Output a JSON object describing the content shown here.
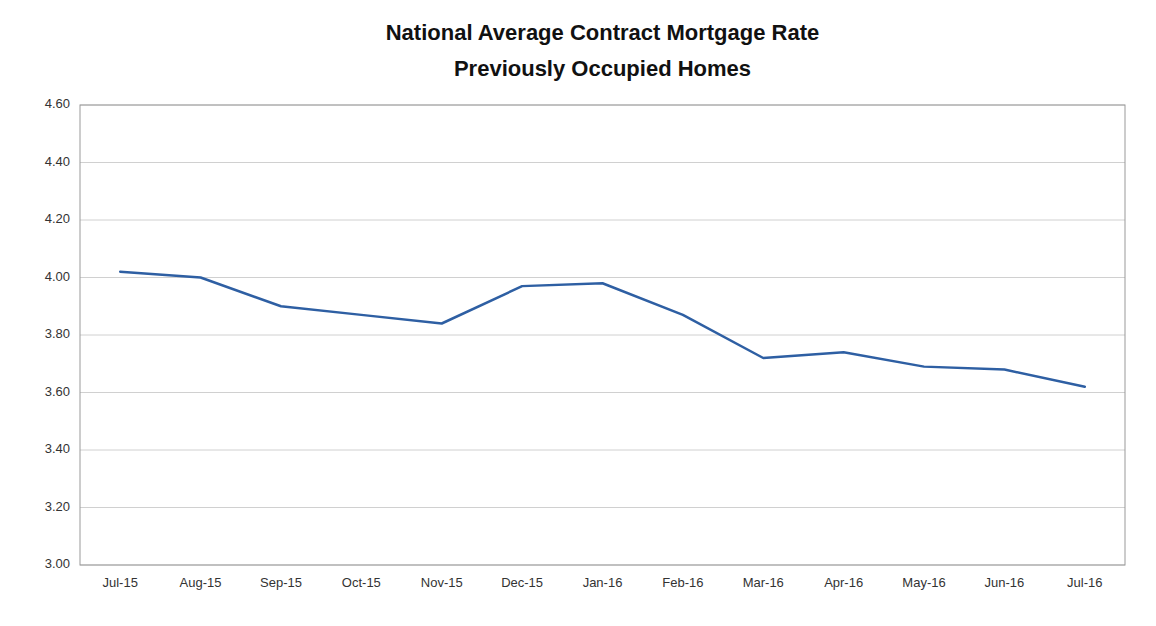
{
  "chart_data": {
    "type": "line",
    "title": "National Average Contract Mortgage Rate",
    "subtitle": "Previously Occupied Homes",
    "categories": [
      "Jul-15",
      "Aug-15",
      "Sep-15",
      "Oct-15",
      "Nov-15",
      "Dec-15",
      "Jan-16",
      "Feb-16",
      "Mar-16",
      "Apr-16",
      "May-16",
      "Jun-16",
      "Jul-16"
    ],
    "values": [
      4.02,
      4.0,
      3.9,
      3.87,
      3.84,
      3.97,
      3.98,
      3.87,
      3.72,
      3.74,
      3.69,
      3.68,
      3.62
    ],
    "color": "#2E5FA3",
    "ylim": [
      3.0,
      4.6
    ],
    "yticks": [
      {
        "value": 3.0,
        "label": "3.00"
      },
      {
        "value": 3.2,
        "label": "3.20"
      },
      {
        "value": 3.4,
        "label": "3.40"
      },
      {
        "value": 3.6,
        "label": "3.60"
      },
      {
        "value": 3.8,
        "label": "3.80"
      },
      {
        "value": 4.0,
        "label": "4.00"
      },
      {
        "value": 4.2,
        "label": "4.20"
      },
      {
        "value": 4.4,
        "label": "4.40"
      },
      {
        "value": 4.6,
        "label": "4.60"
      }
    ],
    "grid": true
  }
}
